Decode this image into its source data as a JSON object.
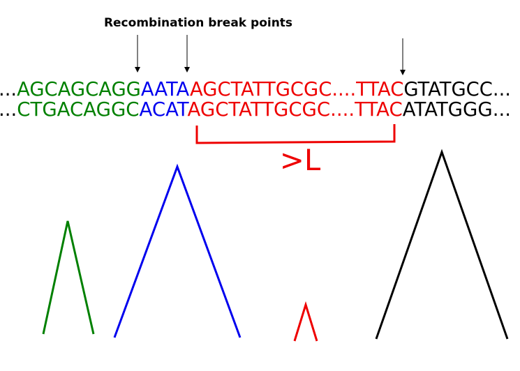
{
  "title": "Recombination break points",
  "colors": {
    "green": "#008000",
    "blue": "#0000ee",
    "red": "#ee0000",
    "black": "#000000"
  },
  "sequence_top": {
    "lead": "...",
    "green": "AGCAGCAGG",
    "blue": "AATA",
    "red": "AGCTATTGCGC....TTAC",
    "black": "GTATGCC..."
  },
  "sequence_bottom": {
    "lead": "...",
    "green": "CTGACAGGC",
    "blue": "ACAT",
    "red": "AGCTATTGCGC....TTAC",
    "black": "ATATGGG..."
  },
  "length_label": ">L"
}
